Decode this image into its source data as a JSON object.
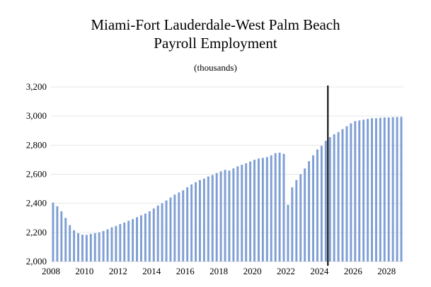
{
  "chart_data": {
    "type": "bar",
    "title": "Miami-Fort Lauderdale-West Palm Beach",
    "subtitle": "Payroll Employment",
    "units": "(thousands)",
    "xlabel": "",
    "ylabel": "",
    "ylim": [
      2000,
      3200
    ],
    "yticks": [
      "2,000",
      "2,200",
      "2,400",
      "2,600",
      "2,800",
      "3,000",
      "3,200"
    ],
    "xtick_labels": [
      "2008",
      "2010",
      "2012",
      "2014",
      "2016",
      "2018",
      "2020",
      "2022",
      "2024",
      "2026",
      "2028"
    ],
    "x_range": [
      2008,
      2028.75
    ],
    "grid": true,
    "bar_color": "#7f9fd4",
    "marker_line": 2024.5,
    "marker_color": "#000000",
    "x": [
      2008.0,
      2008.25,
      2008.5,
      2008.75,
      2009.0,
      2009.25,
      2009.5,
      2009.75,
      2010.0,
      2010.25,
      2010.5,
      2010.75,
      2011.0,
      2011.25,
      2011.5,
      2011.75,
      2012.0,
      2012.25,
      2012.5,
      2012.75,
      2013.0,
      2013.25,
      2013.5,
      2013.75,
      2014.0,
      2014.25,
      2014.5,
      2014.75,
      2015.0,
      2015.25,
      2015.5,
      2015.75,
      2016.0,
      2016.25,
      2016.5,
      2016.75,
      2017.0,
      2017.25,
      2017.5,
      2017.75,
      2018.0,
      2018.25,
      2018.5,
      2018.75,
      2019.0,
      2019.25,
      2019.5,
      2019.75,
      2020.0,
      2020.25,
      2020.5,
      2020.75,
      2021.0,
      2021.25,
      2021.5,
      2021.75,
      2022.0,
      2022.25,
      2022.5,
      2022.75,
      2023.0,
      2023.25,
      2023.5,
      2023.75,
      2024.0,
      2024.25,
      2024.5,
      2024.75,
      2025.0,
      2025.25,
      2025.5,
      2025.75,
      2026.0,
      2026.25,
      2026.5,
      2026.75,
      2027.0,
      2027.25,
      2027.5,
      2027.75,
      2028.0,
      2028.25,
      2028.5,
      2028.75
    ],
    "values": [
      2405,
      2380,
      2345,
      2300,
      2250,
      2215,
      2195,
      2185,
      2183,
      2190,
      2195,
      2200,
      2210,
      2222,
      2235,
      2245,
      2258,
      2268,
      2280,
      2292,
      2305,
      2318,
      2330,
      2345,
      2365,
      2385,
      2400,
      2420,
      2440,
      2460,
      2475,
      2490,
      2510,
      2530,
      2545,
      2560,
      2570,
      2585,
      2595,
      2608,
      2620,
      2630,
      2625,
      2640,
      2655,
      2665,
      2675,
      2688,
      2700,
      2708,
      2712,
      2718,
      2730,
      2745,
      2748,
      2740,
      2390,
      2510,
      2560,
      2600,
      2640,
      2690,
      2730,
      2770,
      2795,
      2830,
      2855,
      2875,
      2890,
      2910,
      2930,
      2950,
      2965,
      2970,
      2975,
      2980,
      2985,
      2985,
      2988,
      2990,
      2990,
      2992,
      2993,
      2994
    ]
  }
}
